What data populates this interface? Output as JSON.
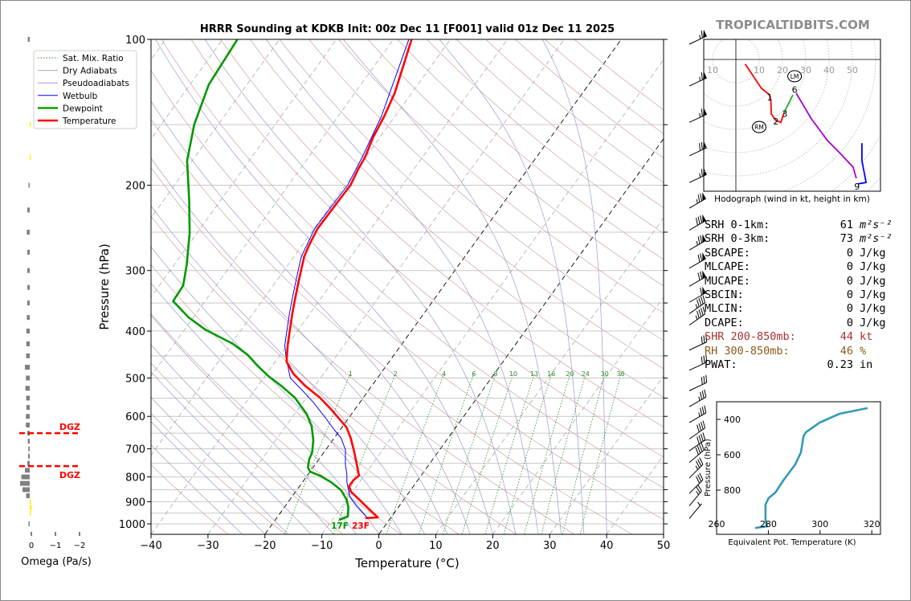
{
  "title": "HRRR Sounding at KDKB Init: 00z Dec 11 [F001] valid 01z Dec 11 2025",
  "watermark": "TROPICALTIDBITS.COM",
  "surface_labels": {
    "dewpoint": "17F",
    "temperature": "23F"
  },
  "legend": [
    {
      "label": "Sat. Mix. Ratio",
      "color": "#2e8b2e",
      "style": "dotted"
    },
    {
      "label": "Dry Adiabats",
      "color": "#c9a0a0",
      "style": "solid"
    },
    {
      "label": "Pseudoadiabats",
      "color": "#9a9ad0",
      "style": "solid"
    },
    {
      "label": "Wetbulb",
      "color": "#0000ff",
      "style": "solid"
    },
    {
      "label": "Dewpoint",
      "color": "#009900",
      "style": "thick"
    },
    {
      "label": "Temperature",
      "color": "#ff0000",
      "style": "thick"
    }
  ],
  "params": [
    {
      "label": "SRH 0-1km:",
      "value": "61",
      "unit": "m²s⁻²",
      "color": "#000000"
    },
    {
      "label": "SRH 0-3km:",
      "value": "73",
      "unit": "m²s⁻²",
      "color": "#000000"
    },
    {
      "label": "SBCAPE:",
      "value": "0",
      "unit": "J/kg",
      "color": "#000000"
    },
    {
      "label": "MLCAPE:",
      "value": "0",
      "unit": "J/kg",
      "color": "#000000"
    },
    {
      "label": "MUCAPE:",
      "value": "0",
      "unit": "J/kg",
      "color": "#000000"
    },
    {
      "label": "SBCIN:",
      "value": "0",
      "unit": "J/kg",
      "color": "#000000"
    },
    {
      "label": "MLCIN:",
      "value": "0",
      "unit": "J/kg",
      "color": "#000000"
    },
    {
      "label": "DCAPE:",
      "value": "0",
      "unit": "J/kg",
      "color": "#000000"
    },
    {
      "label": "SHR 200-850mb:",
      "value": "44",
      "unit": "kt",
      "color": "#a83232"
    },
    {
      "label": "RH 300-850mb:",
      "value": "46",
      "unit": "%",
      "color": "#8b5a1a"
    },
    {
      "label": "PWAT:",
      "value": "0.23",
      "unit": "in",
      "color": "#000000"
    }
  ],
  "chart_data": [
    {
      "type": "line",
      "name": "skewt",
      "xlabel": "Temperature (°C)",
      "ylabel": "Pressure (hPa)",
      "xlim": [
        -40,
        50
      ],
      "ylim": [
        1050,
        100
      ],
      "yscale": "log",
      "xticks": [
        -40,
        -30,
        -20,
        -10,
        0,
        10,
        20,
        30,
        40,
        50
      ],
      "yticks": [
        100,
        200,
        300,
        400,
        500,
        600,
        700,
        800,
        900,
        1000
      ],
      "highlighted_isotherms": [
        0,
        -20
      ],
      "mixing_ratio_labels": [
        "1",
        "2",
        "4",
        "6",
        "8",
        "10",
        "13",
        "16",
        "20",
        "24",
        "30",
        "36"
      ],
      "grid": true,
      "temperature": {
        "color": "#ff0000",
        "p": [
          973,
          970,
          941,
          901,
          858,
          836,
          813,
          795,
          754,
          711,
          665,
          632,
          581,
          549,
          519,
          490,
          463,
          428,
          397,
          368,
          341,
          310,
          281,
          266,
          246,
          228,
          211,
          200,
          185,
          175,
          159,
          144,
          129,
          100
        ],
        "t": [
          -4.4,
          -2.3,
          -4.3,
          -7.1,
          -10.3,
          -11.3,
          -11.3,
          -10.9,
          -12.7,
          -14.7,
          -17.1,
          -19.2,
          -24.1,
          -27.6,
          -31.7,
          -35.3,
          -38,
          -39.9,
          -41.5,
          -43.1,
          -44.6,
          -46.4,
          -48.2,
          -48.8,
          -49.4,
          -49.3,
          -49.2,
          -49.1,
          -49.8,
          -50.1,
          -51.2,
          -51.9,
          -53,
          -56.8
        ]
      },
      "dewpoint": {
        "color": "#009900",
        "p": [
          981,
          966,
          926,
          892,
          852,
          820,
          795,
          780,
          765,
          736,
          711,
          672,
          628,
          593,
          549,
          519,
          496,
          471,
          448,
          425,
          397,
          375,
          347,
          322,
          292,
          251,
          215,
          178,
          150,
          124,
          100
        ],
        "t": [
          -8.8,
          -7.7,
          -8.7,
          -10,
          -12.2,
          -15,
          -17.8,
          -20,
          -20.9,
          -21.7,
          -22.1,
          -23.4,
          -25.5,
          -27.9,
          -32,
          -35.9,
          -39.3,
          -42.7,
          -45.7,
          -49.7,
          -56.4,
          -60.8,
          -65.6,
          -65.8,
          -67.8,
          -71.3,
          -75.5,
          -80.9,
          -84.2,
          -86.7,
          -87.4
        ]
      },
      "wetbulb": {
        "color": "#0000ff",
        "p": [
          973,
          959,
          922,
          880,
          820,
          790,
          754,
          704,
          665,
          641,
          604,
          560,
          528,
          500,
          454,
          428,
          397,
          368,
          341,
          310,
          281,
          246,
          211,
          200,
          175,
          144,
          100
        ],
        "t": [
          -4,
          -4.9,
          -7.3,
          -9.8,
          -12.2,
          -13.2,
          -14.7,
          -16.5,
          -18.8,
          -20.9,
          -24.1,
          -28.3,
          -31.9,
          -35.3,
          -38.6,
          -40.4,
          -42,
          -43.6,
          -45.1,
          -46.9,
          -48.7,
          -49.9,
          -49.7,
          -49.6,
          -50.6,
          -52.4,
          -57.3
        ]
      },
      "wind_barbs": {
        "units": "kt",
        "p": [
          100,
          122,
          145,
          170,
          193,
          218,
          242,
          266,
          290,
          316,
          341,
          360,
          380,
          428,
          471,
          519,
          560,
          604,
          653,
          691,
          730,
          786,
          846,
          897,
          953
        ],
        "direction": [
          295,
          295,
          295,
          295,
          295,
          300,
          300,
          300,
          300,
          300,
          300,
          305,
          305,
          295,
          295,
          295,
          300,
          300,
          305,
          305,
          310,
          315,
          315,
          320,
          320
        ],
        "speed": [
          65,
          65,
          65,
          70,
          65,
          75,
          80,
          75,
          70,
          70,
          60,
          45,
          45,
          30,
          30,
          30,
          35,
          35,
          40,
          40,
          40,
          35,
          30,
          25,
          5
        ]
      }
    },
    {
      "type": "bar",
      "name": "omega",
      "xlabel": "Omega (Pa/s)",
      "xticks": [
        "0",
        "−1",
        "−2"
      ],
      "xlim": [
        0.2,
        -2
      ],
      "dgz_label": "DGZ",
      "dgz_pressures": [
        650,
        760
      ],
      "dgz_color": "#ff0000",
      "positive_color": "#808080",
      "negative_color": "#ffee00",
      "p": [
        100,
        150,
        175,
        200,
        225,
        250,
        275,
        300,
        325,
        350,
        375,
        400,
        425,
        450,
        475,
        500,
        525,
        550,
        575,
        600,
        625,
        650,
        675,
        700,
        725,
        750,
        775,
        800,
        825,
        850,
        875,
        900,
        925,
        950,
        1000
      ],
      "omega": [
        0.08,
        -0.05,
        -0.05,
        0.01,
        0.1,
        0.12,
        0.1,
        0.1,
        0.1,
        0.1,
        0.12,
        0.14,
        0.14,
        0.15,
        0.2,
        0.16,
        0.18,
        0.15,
        0.14,
        0.16,
        0.16,
        0.1,
        0.08,
        0.06,
        0.07,
        0.1,
        0.2,
        0.35,
        0.4,
        0.3,
        0.15,
        -0.05,
        -0.08,
        -0.02,
        0.03
      ]
    },
    {
      "type": "line",
      "name": "hodograph",
      "xlabel": "Hodograph (wind in kt, height in km)",
      "ring_labels": [
        "10",
        "10",
        "20",
        "30",
        "40",
        "50"
      ],
      "segments": [
        {
          "color": "#ff0000",
          "u": [
            4,
            11,
            14.5
          ],
          "v": [
            -2,
            -12.4,
            -15.2
          ]
        },
        {
          "color": "#ff0000",
          "u": [
            14.5,
            15,
            15.2,
            17.2,
            19.3,
            20.7
          ],
          "v": [
            -15.2,
            -17.6,
            -23.4,
            -26.2,
            -27,
            -22.8
          ]
        },
        {
          "color": "#22aa22",
          "u": [
            20.7,
            22.4,
            24.5
          ],
          "v": [
            -22.8,
            -19.3,
            -15.2
          ]
        },
        {
          "color": "#aa00cc",
          "u": [
            25.9,
            32.4,
            39.3,
            44.5,
            50.3,
            51.7
          ],
          "v": [
            -14.5,
            -25.5,
            -34.8,
            -40,
            -46.2,
            -51
          ]
        },
        {
          "color": "#0000ff",
          "u": [
            52.4,
            55.9,
            54.1,
            54.1
          ],
          "v": [
            -53.4,
            -52.8,
            -43.4,
            -35.9
          ]
        }
      ],
      "height_labels": [
        {
          "text": "1",
          "u": 14.5,
          "v": -16.2
        },
        {
          "text": "2",
          "u": 17.2,
          "v": -26.6
        },
        {
          "text": "3",
          "u": 21,
          "v": -23.2
        },
        {
          "text": "6",
          "u": 25.2,
          "v": -13
        },
        {
          "text": "9",
          "u": 52,
          "v": -54.4
        }
      ],
      "storm_motion": [
        {
          "text": "RM",
          "u": 10,
          "v": -29
        },
        {
          "text": "LM",
          "u": 25.2,
          "v": -7.2
        }
      ]
    },
    {
      "type": "line",
      "name": "theta-e",
      "xlabel": "Equivalent Pot. Temperature (K)",
      "ylabel": "Pressure (hPa)",
      "xlim": [
        260,
        323
      ],
      "ylim": [
        1050,
        300
      ],
      "xticks": [
        260,
        280,
        300,
        320
      ],
      "yticks": [
        400,
        600,
        800
      ],
      "color": "#3399bb",
      "theta_e": [
        274.9,
        279.5,
        278.9,
        278.9,
        280.1,
        282.7,
        285.8,
        290.4,
        292.6,
        293.6,
        294.5,
        299.8,
        307.5,
        318.4
      ],
      "p": [
        1014,
        1005,
        973,
        882,
        845,
        814,
        745,
        655,
        586,
        495,
        473,
        418,
        368,
        336
      ]
    }
  ]
}
